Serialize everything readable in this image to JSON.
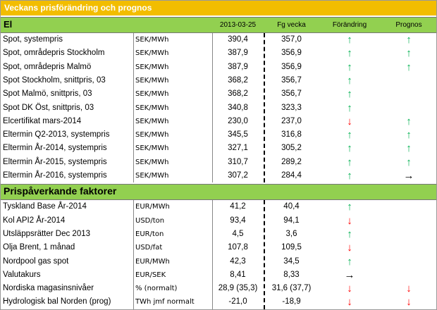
{
  "header": {
    "title": "Veckans prisförändring och prognos"
  },
  "columns": [
    "2013-03-25",
    "Fg vecka",
    "Förändring",
    "Prognos"
  ],
  "sections": [
    {
      "title": "El",
      "rows": [
        {
          "name": "Spot, systempris",
          "unit": "SEK/MWh",
          "current": "390,4",
          "previous": "357,0",
          "change": {
            "arrow": "↑",
            "color": "#00b050"
          },
          "forecast": {
            "arrow": "↑",
            "color": "#00b050"
          }
        },
        {
          "name": "Spot, områdepris Stockholm",
          "unit": "SEK/MWh",
          "current": "387,9",
          "previous": "356,9",
          "change": {
            "arrow": "↑",
            "color": "#00b050"
          },
          "forecast": {
            "arrow": "↑",
            "color": "#00b050"
          }
        },
        {
          "name": "Spot, områdepris Malmö",
          "unit": "SEK/MWh",
          "current": "387,9",
          "previous": "356,9",
          "change": {
            "arrow": "↑",
            "color": "#00b050"
          },
          "forecast": {
            "arrow": "↑",
            "color": "#00b050"
          }
        },
        {
          "name": "Spot Stockholm, snittpris,  03",
          "unit": "SEK/MWh",
          "current": "368,2",
          "previous": "356,7",
          "change": {
            "arrow": "↑",
            "color": "#00b050"
          },
          "forecast": null
        },
        {
          "name": "Spot Malmö, snittpris,  03",
          "unit": "SEK/MWh",
          "current": "368,2",
          "previous": "356,7",
          "change": {
            "arrow": "↑",
            "color": "#00b050"
          },
          "forecast": null
        },
        {
          "name": "Spot DK Öst, snittpris,  03",
          "unit": "SEK/MWh",
          "current": "340,8",
          "previous": "323,3",
          "change": {
            "arrow": "↑",
            "color": "#00b050"
          },
          "forecast": null
        },
        {
          "name": "Elcertifikat mars-2014",
          "unit": "SEK/MWh",
          "current": "230,0",
          "previous": "237,0",
          "change": {
            "arrow": "↓",
            "color": "#ff0000"
          },
          "forecast": {
            "arrow": "↑",
            "color": "#00b050"
          }
        },
        {
          "name": "Eltermin Q2-2013, systempris",
          "unit": "SEK/MWh",
          "current": "345,5",
          "previous": "316,8",
          "change": {
            "arrow": "↑",
            "color": "#00b050"
          },
          "forecast": {
            "arrow": "↑",
            "color": "#00b050"
          }
        },
        {
          "name": "Eltermin År-2014, systempris",
          "unit": "SEK/MWh",
          "current": "327,1",
          "previous": "305,2",
          "change": {
            "arrow": "↑",
            "color": "#00b050"
          },
          "forecast": {
            "arrow": "↑",
            "color": "#00b050"
          }
        },
        {
          "name": "Eltermin År-2015, systempris",
          "unit": "SEK/MWh",
          "current": "310,7",
          "previous": "289,2",
          "change": {
            "arrow": "↑",
            "color": "#00b050"
          },
          "forecast": {
            "arrow": "↑",
            "color": "#00b050"
          }
        },
        {
          "name": "Eltermin År-2016, systempris",
          "unit": "SEK/MWh",
          "current": "307,2",
          "previous": "284,4",
          "change": {
            "arrow": "↑",
            "color": "#00b050"
          },
          "forecast": {
            "arrow": "→",
            "color": "#000000"
          }
        }
      ]
    },
    {
      "title": "Prispåverkande faktorer",
      "rows": [
        {
          "name": "Tyskland Base År-2014",
          "unit": "EUR/MWh",
          "current": "41,2",
          "previous": "40,4",
          "change": {
            "arrow": "↑",
            "color": "#00b050"
          },
          "forecast": null
        },
        {
          "name": "Kol API2 År-2014",
          "unit": "USD/ton",
          "current": "93,4",
          "previous": "94,1",
          "change": {
            "arrow": "↓",
            "color": "#ff0000"
          },
          "forecast": null
        },
        {
          "name": "Utsläppsrätter Dec 2013",
          "unit": "EUR/ton",
          "current": "4,5",
          "previous": "3,6",
          "change": {
            "arrow": "↑",
            "color": "#00b050"
          },
          "forecast": null
        },
        {
          "name": "Olja Brent, 1 månad",
          "unit": "USD/fat",
          "current": "107,8",
          "previous": "109,5",
          "change": {
            "arrow": "↓",
            "color": "#ff0000"
          },
          "forecast": null
        },
        {
          "name": "Nordpool gas spot",
          "unit": "EUR/MWh",
          "current": "42,3",
          "previous": "34,5",
          "change": {
            "arrow": "↑",
            "color": "#00b050"
          },
          "forecast": null
        },
        {
          "name": "Valutakurs",
          "unit": "EUR/SEK",
          "current": "8,41",
          "previous": "8,33",
          "change": {
            "arrow": "→",
            "color": "#000000"
          },
          "forecast": null
        },
        {
          "name": "Nordiska magasinsnivåer",
          "unit": "%  (normalt)",
          "current": "28,9 (35,3)",
          "previous": "31,6 (37,7)",
          "change": {
            "arrow": "↓",
            "color": "#ff0000"
          },
          "forecast": {
            "arrow": "↓",
            "color": "#ff0000"
          }
        },
        {
          "name": "Hydrologisk bal Norden (prog)",
          "unit": "TWh jmf normalt",
          "current": "-21,0",
          "previous": "-18,9",
          "change": {
            "arrow": "↓",
            "color": "#ff0000"
          },
          "forecast": {
            "arrow": "↓",
            "color": "#ff0000"
          }
        }
      ]
    }
  ]
}
